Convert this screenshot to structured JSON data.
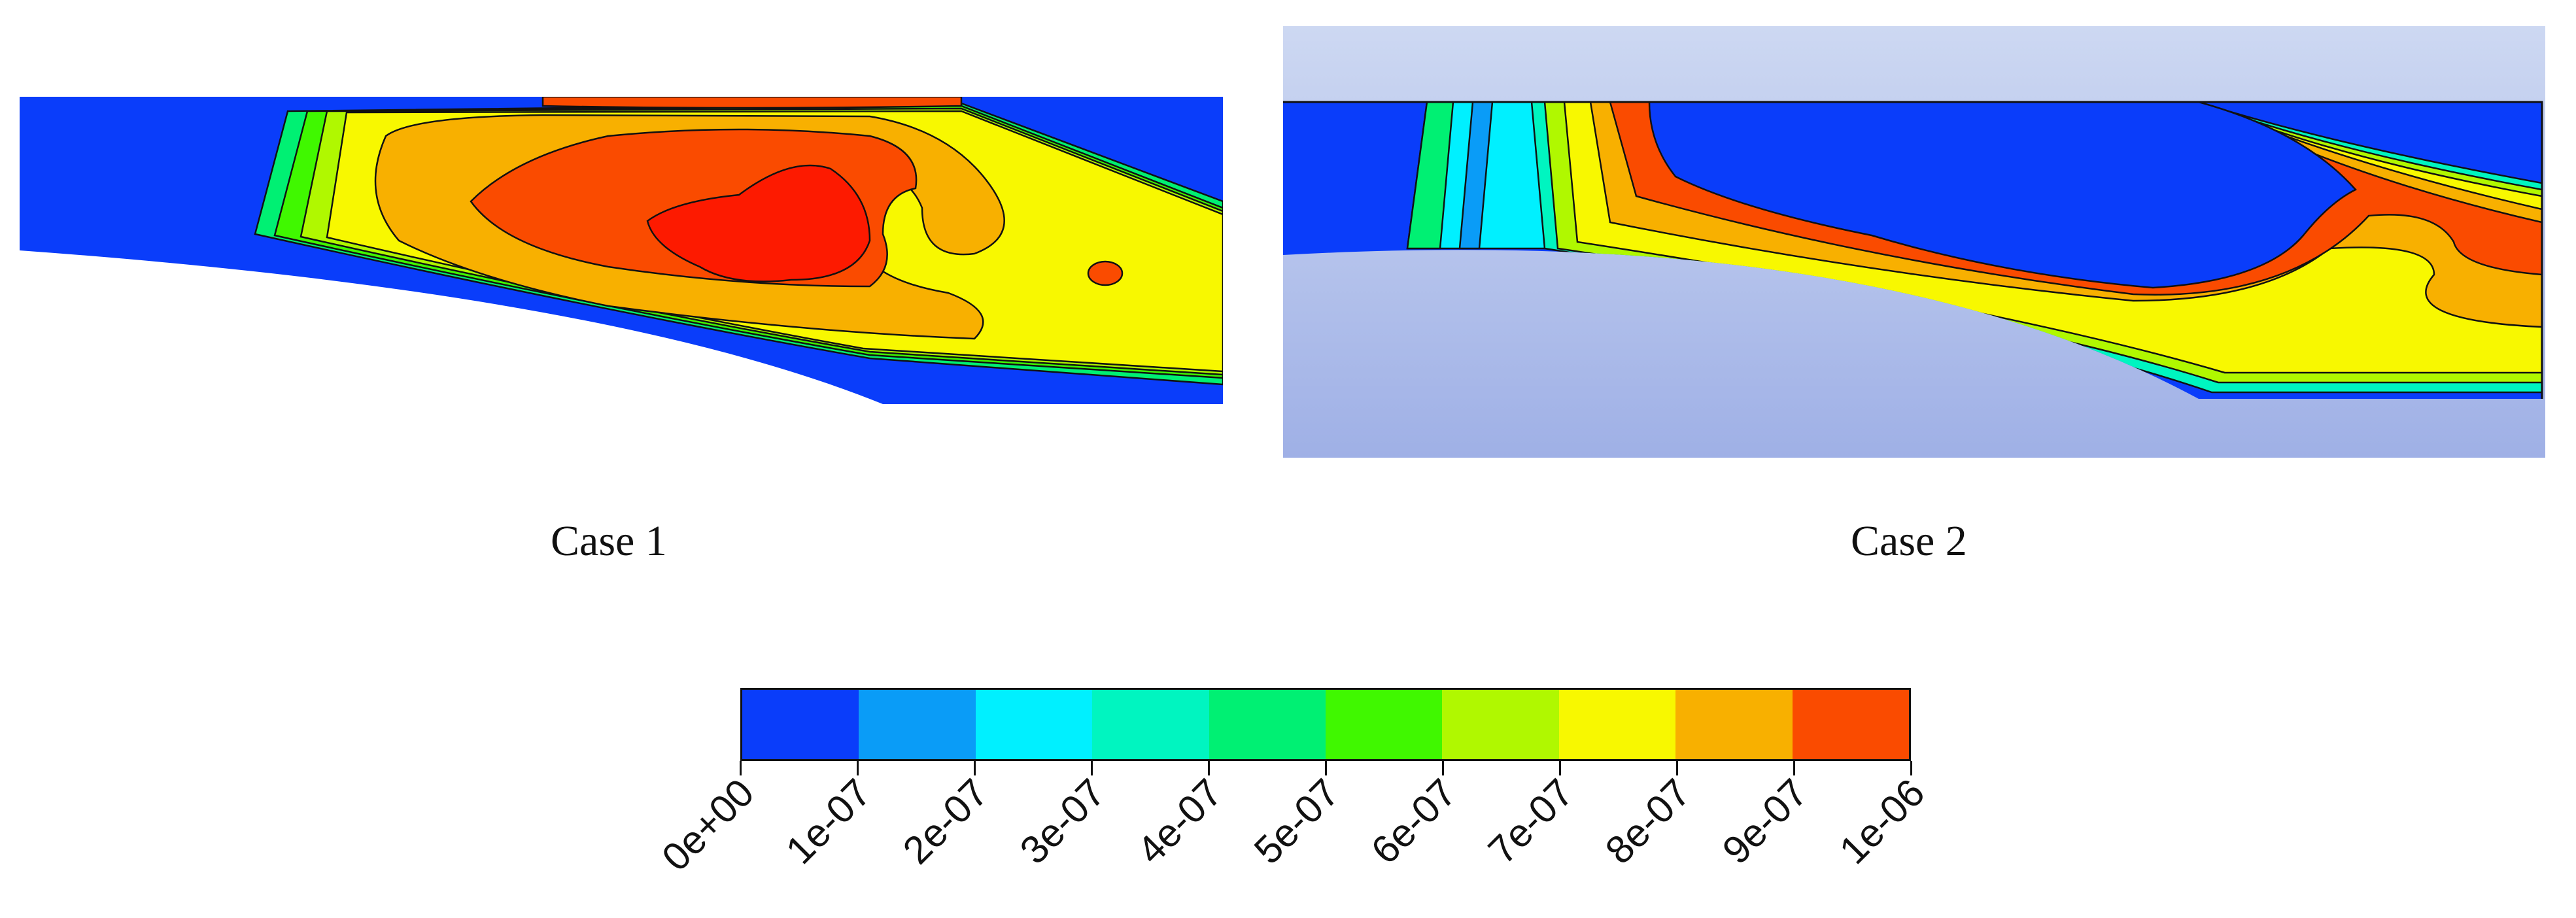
{
  "cases": [
    {
      "caption": "Case 1"
    },
    {
      "caption": "Case 2"
    }
  ],
  "colorbar": {
    "colors": [
      "#0a3dfa",
      "#0a9cf7",
      "#00f0ff",
      "#00f5c0",
      "#00f073",
      "#40f800",
      "#b0f800",
      "#f8f800",
      "#f8b000",
      "#fa4b00"
    ],
    "ticks": [
      "0e+00",
      "1e-07",
      "2e-07",
      "3e-07",
      "4e-07",
      "5e-07",
      "6e-07",
      "7e-07",
      "8e-07",
      "9e-07",
      "1e-06"
    ]
  },
  "panel2_background": [
    "#cdd8f2",
    "#9fb0e6"
  ]
}
